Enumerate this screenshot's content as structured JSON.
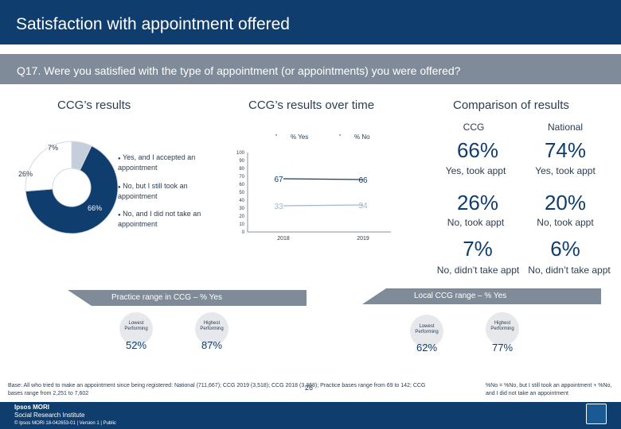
{
  "header": {
    "title": "Satisfaction with appointment offered",
    "question": "Q17. Were you satisfied with the type of appointment (or appointments) you were offered?"
  },
  "sections": {
    "ccg_results": "CCG’s results",
    "ccg_over_time": "CCG’s results over time",
    "comparison": "Comparison of results"
  },
  "donut": {
    "segments": [
      {
        "label": "Yes, and I accepted an appointment",
        "value": 66,
        "display": "66%",
        "color": "#0f3d6e"
      },
      {
        "label": "No, but I still took an appointment",
        "value": 26,
        "display": "26%",
        "color": "#ffffff"
      },
      {
        "label": "No, and I did not take an appointment",
        "value": 7,
        "display": "7%",
        "color": "#c5cfdb"
      }
    ]
  },
  "chart_data": {
    "type": "line",
    "x": [
      "2018",
      "2019"
    ],
    "series": [
      {
        "name": "% Yes",
        "values": [
          67,
          66
        ]
      },
      {
        "name": "% No",
        "values": [
          33,
          34
        ]
      }
    ],
    "ylim": [
      0,
      100
    ],
    "yticks": [
      "100",
      "90",
      "80",
      "70",
      "60",
      "50",
      "40",
      "30",
      "20",
      "10",
      "0"
    ],
    "xlabel": "",
    "ylabel": "",
    "legend": "top"
  },
  "comparison": {
    "col_ccg": "CCG",
    "col_national": "National",
    "rows": [
      {
        "ccg": "66%",
        "national": "74%",
        "ccg_label": "Yes, took appt",
        "national_label": "Yes, took appt"
      },
      {
        "ccg": "26%",
        "national": "20%",
        "ccg_label": "No, took appt",
        "national_label": "No, took appt"
      },
      {
        "ccg": "7%",
        "national": "6%",
        "ccg_label": "No, didn’t take appt",
        "national_label": "No, didn’t take appt"
      }
    ]
  },
  "practice_range": {
    "title": "Practice range in CCG – % Yes",
    "lowest_label": "Lowest Performing",
    "highest_label": "Highest Performing",
    "lowest_value": "52%",
    "highest_value": "87%"
  },
  "local_range": {
    "title": "Local CCG range – % Yes",
    "lowest_label": "Lowest Performing",
    "highest_label": "Highest Performing",
    "lowest_value": "62%",
    "highest_value": "77%"
  },
  "base_text": "Base: All who tried to make an appointment since being registered: National (711,667); CCG 2019 (3,518); CCG 2018 (3,368); Practice bases range from 69 to 142; CCG bases range from 2,251 to 7,602",
  "note_text": "%No = %No, but I still took an appointment + %No, and I did not take an appointment",
  "footer": {
    "brand_line1": "Ipsos MORI",
    "brand_line2": "Social Research Institute",
    "page_number": "26",
    "copyright": "© Ipsos MORI      18-042653-01 | Version 1 | Public"
  },
  "colors": {
    "navy": "#0f3d6e",
    "grey": "#7f8b98",
    "light": "#c5cfdb"
  }
}
